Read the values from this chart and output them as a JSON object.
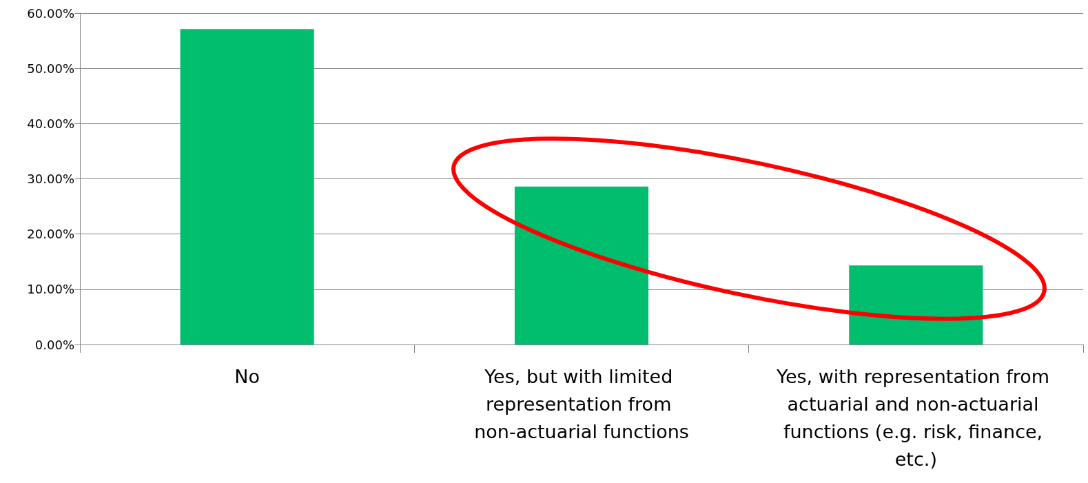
{
  "chart_data": {
    "type": "bar",
    "categories": [
      "No",
      "Yes, but with limited representation from non-actuarial functions",
      "Yes, with representation from actuarial and non-actuarial functions (e.g. risk, finance, etc.)"
    ],
    "values": [
      57.1,
      28.6,
      14.3
    ],
    "color": "#00be6e",
    "ylim": [
      0,
      60
    ],
    "yticks": [
      {
        "value": 0,
        "label": "0.00%"
      },
      {
        "value": 10,
        "label": "10.00%"
      },
      {
        "value": 20,
        "label": "20.00%"
      },
      {
        "value": 30,
        "label": "30.00%"
      },
      {
        "value": 40,
        "label": "40.00%"
      },
      {
        "value": 50,
        "label": "50.00%"
      },
      {
        "value": 60,
        "label": "60.00%"
      }
    ],
    "grid": "y"
  }
}
